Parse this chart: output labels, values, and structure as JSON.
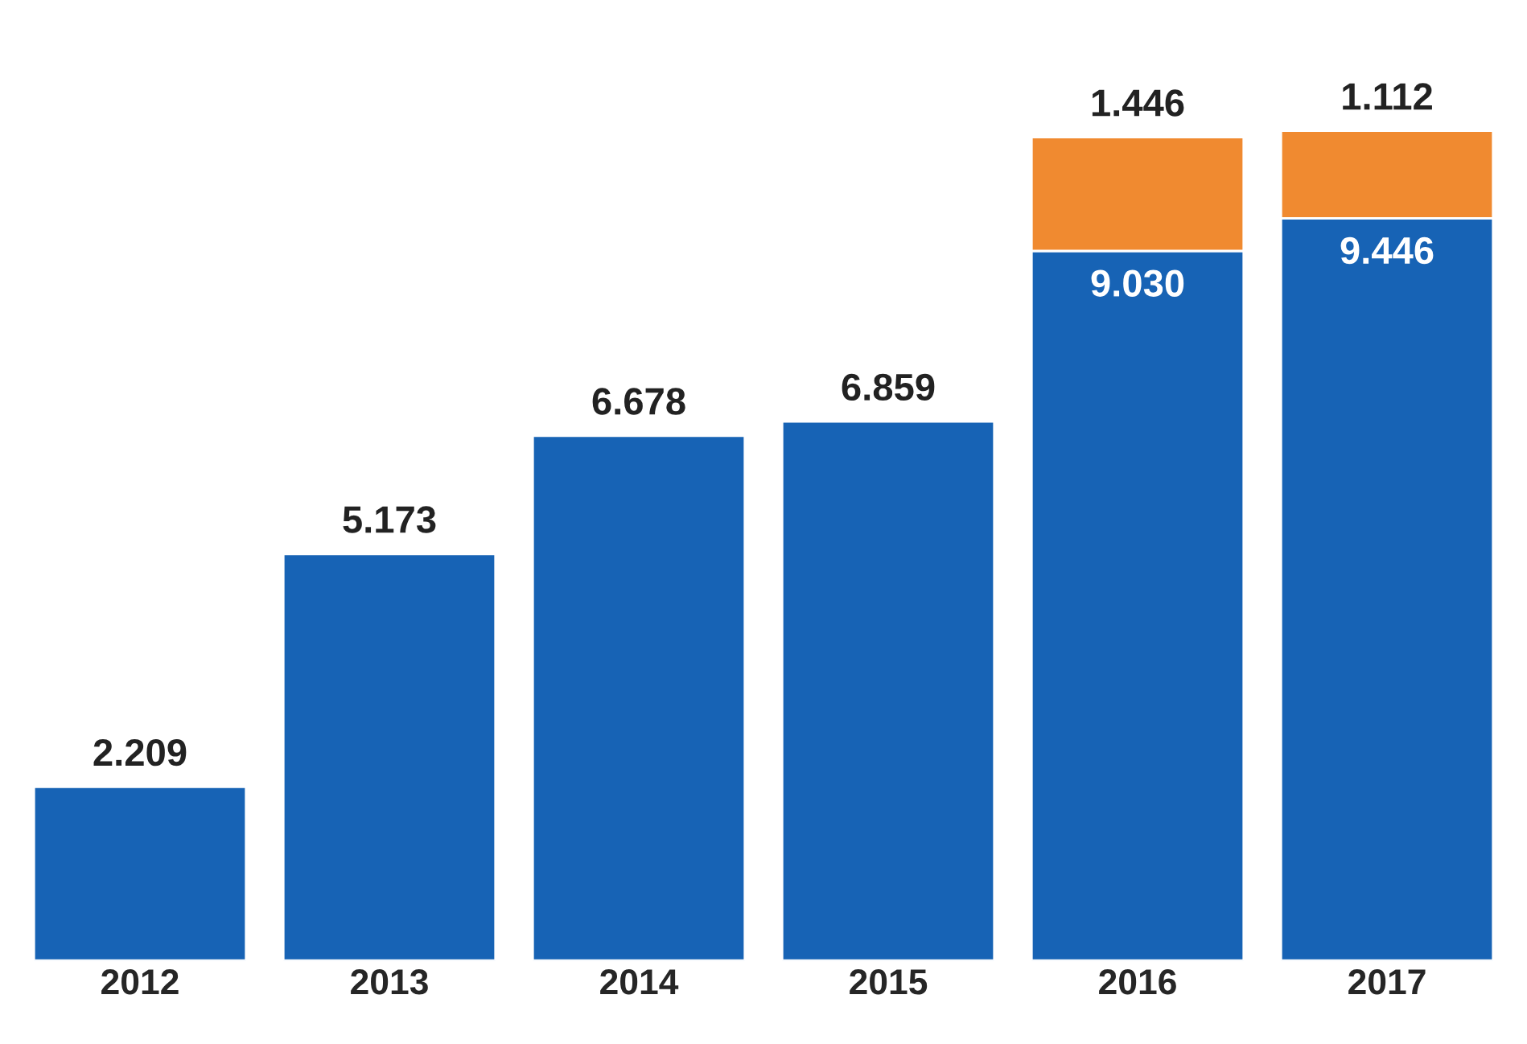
{
  "chart_data": {
    "type": "bar",
    "stacked": true,
    "tick_labels": "x",
    "grid": false,
    "legend": false,
    "categories": [
      "2012",
      "2013",
      "2014",
      "2015",
      "2016",
      "2017"
    ],
    "series": [
      {
        "color": "#1763b5",
        "values": [
          2209,
          5173,
          6678,
          6859,
          9030,
          9446
        ],
        "value_labels": [
          "2.209",
          "5.173",
          "6.678",
          "6.859",
          "9.030",
          "9.446"
        ]
      },
      {
        "color": "#f08a30",
        "values": [
          null,
          null,
          null,
          null,
          1446,
          1112
        ],
        "value_labels": [
          null,
          null,
          null,
          null,
          "1.446",
          "1.112"
        ]
      }
    ]
  }
}
